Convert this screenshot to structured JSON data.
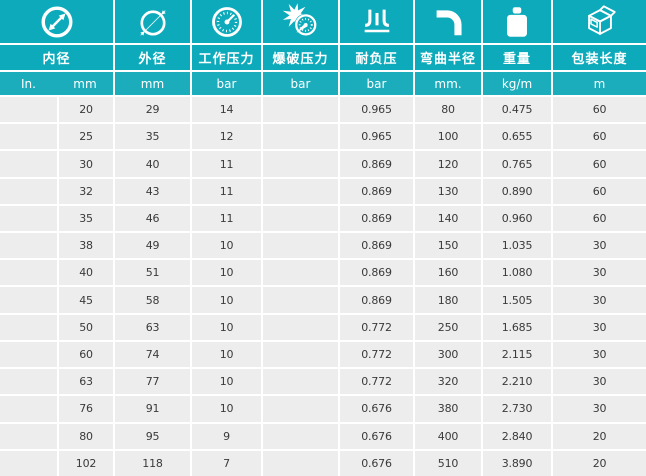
{
  "colors": {
    "header_teal": "#0caaba",
    "units_teal": "#1badbc",
    "row_bg": "#ededed",
    "cell_text": "#3a3a3a",
    "grid_white": "#ffffff",
    "icon_white": "#ffffff"
  },
  "table": {
    "columns": [
      {
        "label": "内径",
        "icon": "inner-diameter-icon",
        "units": [
          "In.",
          "mm"
        ]
      },
      {
        "label": "外径",
        "icon": "outer-diameter-icon",
        "unit": "mm"
      },
      {
        "label": "工作压力",
        "icon": "pressure-gauge-icon",
        "unit": "bar"
      },
      {
        "label": "爆破压力",
        "icon": "burst-pressure-icon",
        "unit": "bar"
      },
      {
        "label": "耐负压",
        "icon": "vacuum-icon",
        "unit": "bar"
      },
      {
        "label": "弯曲半径",
        "icon": "bend-radius-icon",
        "unit": "mm."
      },
      {
        "label": "重量",
        "icon": "weight-icon",
        "unit": "kg/m"
      },
      {
        "label": "包装长度",
        "icon": "package-box-icon",
        "unit": "m"
      }
    ],
    "rows": [
      [
        "",
        "20",
        "29",
        "14",
        "",
        "0.965",
        "80",
        "0.475",
        "60"
      ],
      [
        "",
        "25",
        "35",
        "12",
        "",
        "0.965",
        "100",
        "0.655",
        "60"
      ],
      [
        "",
        "30",
        "40",
        "11",
        "",
        "0.869",
        "120",
        "0.765",
        "60"
      ],
      [
        "",
        "32",
        "43",
        "11",
        "",
        "0.869",
        "130",
        "0.890",
        "60"
      ],
      [
        "",
        "35",
        "46",
        "11",
        "",
        "0.869",
        "140",
        "0.960",
        "60"
      ],
      [
        "",
        "38",
        "49",
        "10",
        "",
        "0.869",
        "150",
        "1.035",
        "30"
      ],
      [
        "",
        "40",
        "51",
        "10",
        "",
        "0.869",
        "160",
        "1.080",
        "30"
      ],
      [
        "",
        "45",
        "58",
        "10",
        "",
        "0.869",
        "180",
        "1.505",
        "30"
      ],
      [
        "",
        "50",
        "63",
        "10",
        "",
        "0.772",
        "250",
        "1.685",
        "30"
      ],
      [
        "",
        "60",
        "74",
        "10",
        "",
        "0.772",
        "300",
        "2.115",
        "30"
      ],
      [
        "",
        "63",
        "77",
        "10",
        "",
        "0.772",
        "320",
        "2.210",
        "30"
      ],
      [
        "",
        "76",
        "91",
        "10",
        "",
        "0.676",
        "380",
        "2.730",
        "30"
      ],
      [
        "",
        "80",
        "95",
        "9",
        "",
        "0.676",
        "400",
        "2.840",
        "20"
      ],
      [
        "",
        "102",
        "118",
        "7",
        "",
        "0.676",
        "510",
        "3.890",
        "20"
      ]
    ]
  }
}
